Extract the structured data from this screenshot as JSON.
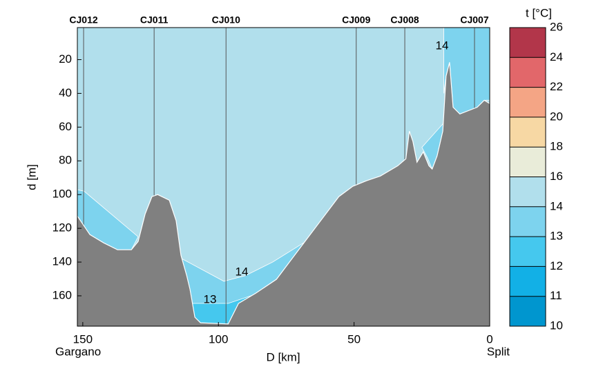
{
  "chart_data": {
    "type": "section",
    "xlabel": "D [km]",
    "ylabel": "d [m]",
    "xlim": [
      152,
      0
    ],
    "ylim": [
      1,
      178
    ],
    "xticks": [
      150,
      100,
      50,
      0
    ],
    "yticks": [
      20,
      40,
      60,
      80,
      100,
      120,
      140,
      160
    ],
    "annotations": [
      "Gargano",
      "Split"
    ],
    "stations": {
      "names": [
        "CJ012",
        "CJ011",
        "CJ010",
        "CJ009",
        "CJ008",
        "CJ007"
      ],
      "x": [
        149.7,
        123.7,
        97.2,
        49.2,
        31.3,
        5.6
      ]
    },
    "background_color": "#b1dfec",
    "bathymetry": {
      "color": "#808080",
      "x": [
        152,
        147.4,
        142.3,
        137.2,
        132.1,
        129.6,
        127,
        124.5,
        122.4,
        118.1,
        115.6,
        113.8,
        111.7,
        110.5,
        108.7,
        106.6,
        96.4,
        92.6,
        86.2,
        78.6,
        71,
        63.3,
        55.6,
        50.5,
        45.4,
        40.3,
        33.9,
        30.9,
        29.6,
        28.3,
        26.8,
        24.5,
        22.4,
        21.2,
        19.4,
        17.3,
        16.1,
        14.8,
        13.5,
        11,
        4.6,
        2,
        0
      ],
      "depth": [
        112.7,
        123.7,
        128.6,
        132.7,
        132.7,
        127.8,
        111.4,
        101.2,
        100,
        103.3,
        115.5,
        136,
        148,
        156,
        172.7,
        176,
        176.7,
        164.5,
        158.4,
        150.2,
        134,
        117.6,
        101.2,
        95.1,
        91.8,
        89,
        82.9,
        78.8,
        62.4,
        68.5,
        80.8,
        74.7,
        82.9,
        84.9,
        77.1,
        62.4,
        29.8,
        21.6,
        48.2,
        52.2,
        48.2,
        44.1,
        46.1
      ]
    },
    "regions": [
      {
        "color": "#7dd3ee",
        "x": [
          152,
          149.5,
          129.6,
          132.1,
          137.2,
          142.3,
          147.4,
          152
        ],
        "y": [
          97.1,
          98,
          125,
          132.7,
          132.7,
          128.6,
          123.7,
          112.7
        ]
      },
      {
        "color": "#7dd3ee",
        "x": [
          113.5,
          98,
          90,
          80,
          68,
          62,
          63.3,
          71,
          78.6,
          86.2,
          92.6,
          96.4,
          106.6,
          108.7,
          110.5,
          111.7,
          113.8
        ],
        "y": [
          138,
          151.4,
          148,
          140,
          128,
          116,
          117.6,
          134,
          150.2,
          158.4,
          164.5,
          176.7,
          176,
          172.7,
          156,
          148,
          136
        ]
      },
      {
        "color": "#45c8ee",
        "x": [
          109.7,
          96.4,
          86.2,
          92.6,
          96.4,
          106.6,
          108.7
        ],
        "y": [
          164.5,
          164.5,
          159,
          164.5,
          176.7,
          176,
          172.7
        ]
      },
      {
        "color": "#7dd3ee",
        "x": [
          16.9,
          0,
          0,
          2,
          4.6,
          11,
          13.5,
          14.8,
          16.1,
          16.9
        ],
        "y": [
          1,
          1,
          44,
          44.1,
          48.2,
          52.2,
          48.2,
          21.6,
          29.8,
          40
        ]
      },
      {
        "color": "#7dd3ee",
        "x": [
          16.9,
          17.3,
          19.4,
          21.2,
          23,
          25,
          17.2
        ],
        "y": [
          55,
          62.4,
          77.1,
          84.9,
          78,
          72,
          58
        ]
      }
    ],
    "contour_labels": [
      "14",
      "14",
      "13"
    ],
    "colorbar": {
      "title": "t [°C]",
      "ticks": [
        10,
        11,
        12,
        13,
        14,
        16,
        18,
        20,
        22,
        24,
        26
      ],
      "colors": [
        "#0096cf",
        "#12b0e6",
        "#45c8ee",
        "#7dd3ee",
        "#b1dfec",
        "#e9ecd9",
        "#f7d8a4",
        "#f4a585",
        "#e2676a",
        "#b2364a"
      ]
    }
  }
}
